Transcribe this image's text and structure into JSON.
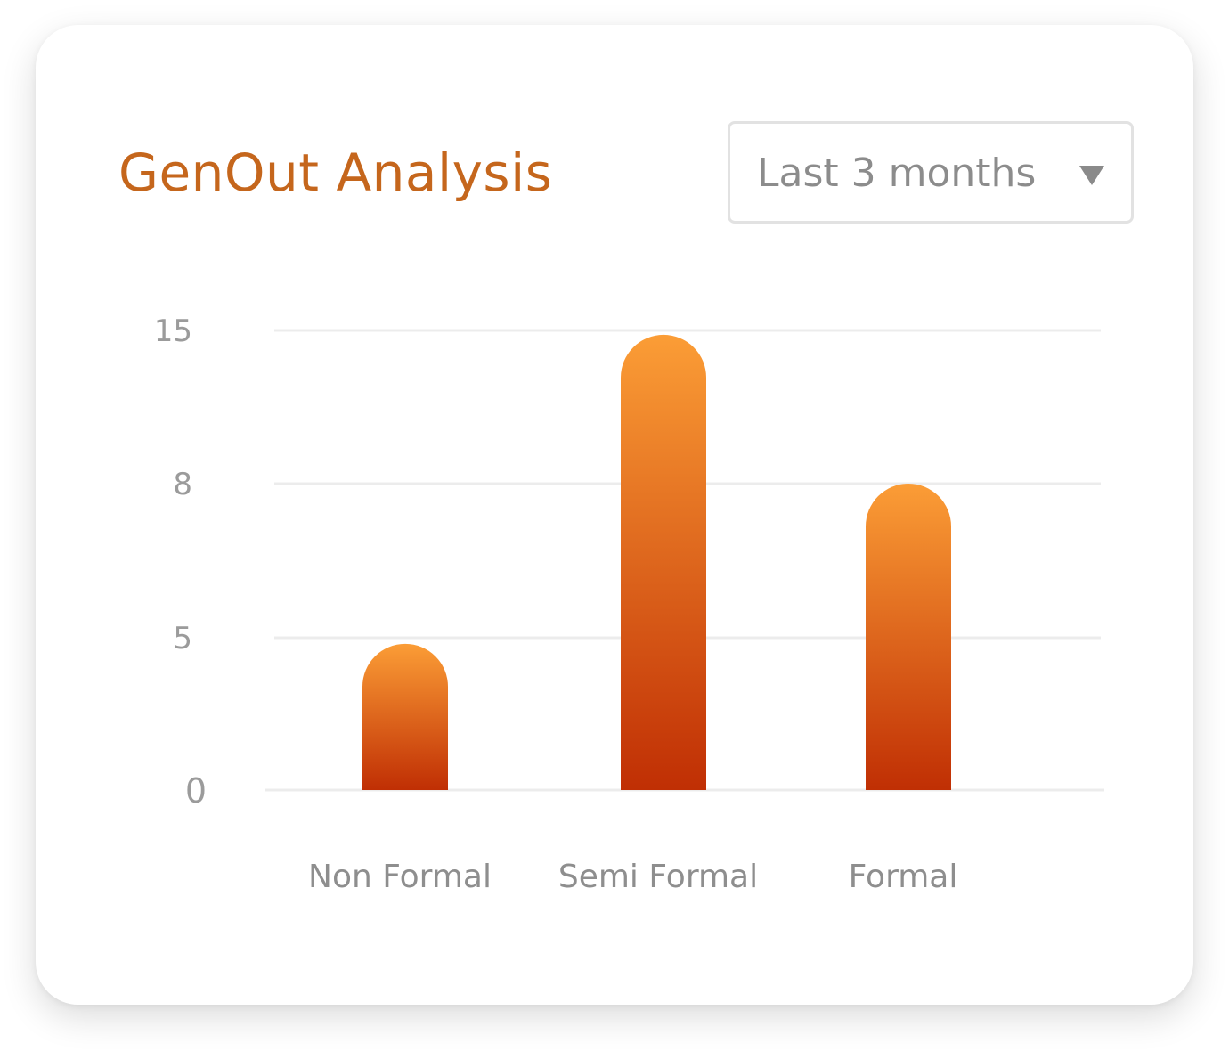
{
  "card": {
    "title": "GenOut Analysis"
  },
  "filter": {
    "selected": "Last 3 months",
    "icon": "chevron-down-icon"
  },
  "colors": {
    "title": "#c5661c",
    "bar_top": "#fb9d36",
    "bar_bottom": "#c02f04",
    "grid": "#ececec",
    "tick": "#9b9b9b"
  },
  "chart_data": {
    "type": "bar",
    "title": "",
    "xlabel": "",
    "ylabel": "",
    "categories": [
      "Non Formal",
      "Semi Formal",
      "Formal"
    ],
    "values": [
      4.8,
      14.8,
      8
    ],
    "yticks": [
      0,
      5,
      8,
      15
    ],
    "ytick_labels": [
      "0",
      "5",
      "8",
      "15"
    ],
    "ylim": [
      0,
      15
    ],
    "grid": true,
    "legend": "none"
  }
}
